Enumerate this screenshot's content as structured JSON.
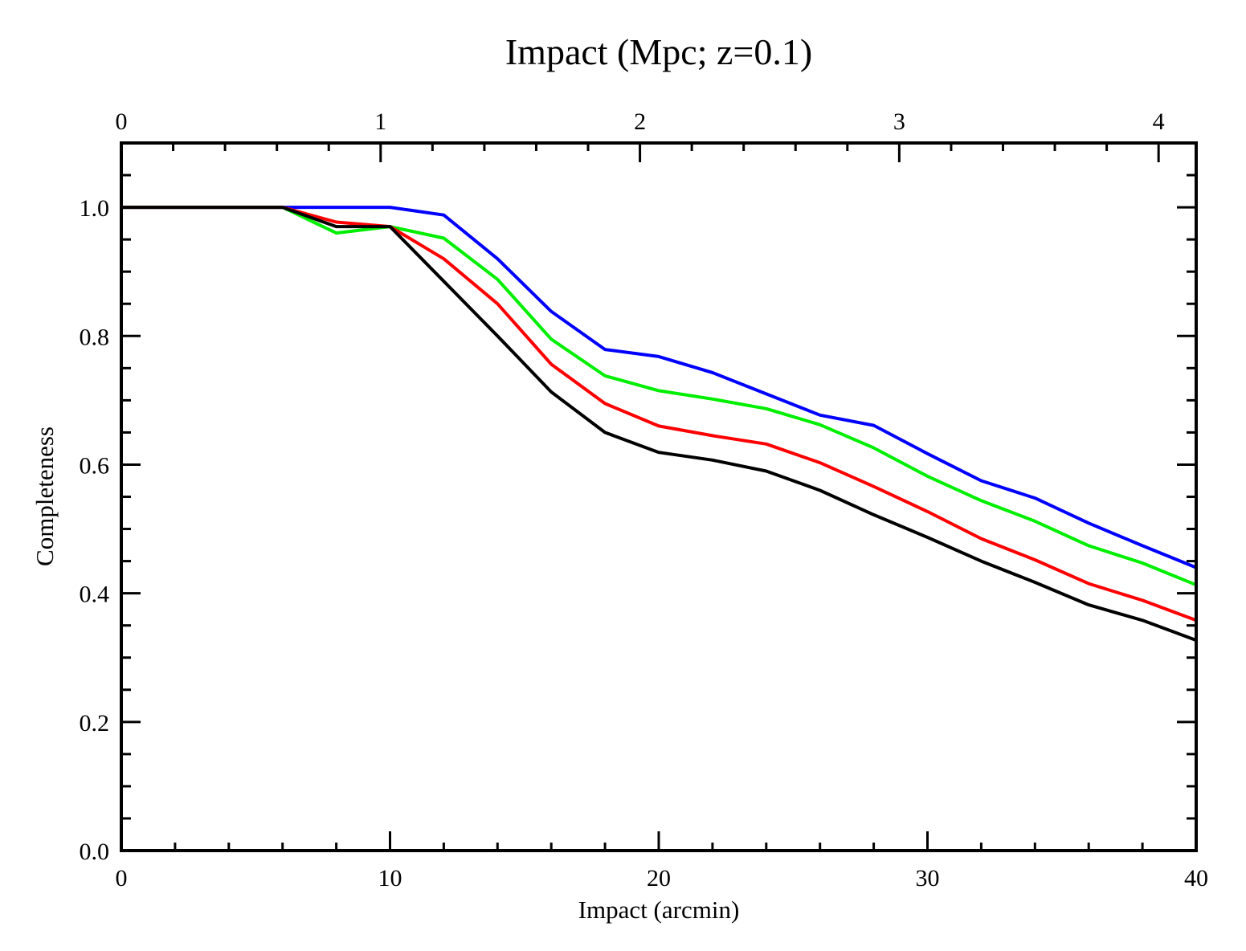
{
  "chart_data": {
    "type": "line",
    "title": "Impact (Mpc; z=0.1)",
    "xlabel": "Impact (arcmin)",
    "ylabel": "Completeness",
    "xlim": [
      0,
      40
    ],
    "ylim": [
      0,
      1.1
    ],
    "grid": false,
    "x_ticks": [
      "0",
      "10",
      "20",
      "30",
      "40"
    ],
    "y_ticks": [
      "0.0",
      "0.2",
      "0.4",
      "0.6",
      "0.8",
      "1.0"
    ],
    "top_axis": {
      "label": "Impact (Mpc; z=0.1)",
      "ticks": [
        {
          "label": "0",
          "value": 0
        },
        {
          "label": "1",
          "value": 1
        },
        {
          "label": "2",
          "value": 2
        },
        {
          "label": "3",
          "value": 3
        },
        {
          "label": "4",
          "value": 4
        }
      ],
      "arcmin_per_mpc": 9.65
    },
    "x": [
      0,
      2,
      4,
      6,
      8,
      10,
      12,
      14,
      16,
      18,
      20,
      22,
      24,
      26,
      28,
      30,
      32,
      34,
      36,
      38,
      40
    ],
    "series": [
      {
        "name": "blue",
        "color": "#0000ff",
        "values": [
          1.0,
          1.0,
          1.0,
          1.0,
          1.0,
          1.0,
          0.988,
          0.92,
          0.838,
          0.779,
          0.768,
          0.743,
          0.71,
          0.677,
          0.661,
          0.617,
          0.575,
          0.548,
          0.509,
          0.474,
          0.44
        ]
      },
      {
        "name": "green",
        "color": "#00ee00",
        "values": [
          1.0,
          1.0,
          1.0,
          1.0,
          0.96,
          0.97,
          0.952,
          0.888,
          0.795,
          0.738,
          0.715,
          0.702,
          0.687,
          0.662,
          0.626,
          0.582,
          0.544,
          0.512,
          0.474,
          0.447,
          0.413
        ]
      },
      {
        "name": "red",
        "color": "#ff0000",
        "values": [
          1.0,
          1.0,
          1.0,
          1.0,
          0.977,
          0.97,
          0.92,
          0.85,
          0.756,
          0.695,
          0.66,
          0.645,
          0.632,
          0.603,
          0.566,
          0.527,
          0.485,
          0.452,
          0.415,
          0.389,
          0.358
        ]
      },
      {
        "name": "black",
        "color": "#000000",
        "values": [
          1.0,
          1.0,
          1.0,
          1.0,
          0.97,
          0.97,
          0.885,
          0.8,
          0.713,
          0.65,
          0.619,
          0.607,
          0.59,
          0.56,
          0.522,
          0.487,
          0.45,
          0.417,
          0.382,
          0.358,
          0.327
        ]
      }
    ]
  }
}
